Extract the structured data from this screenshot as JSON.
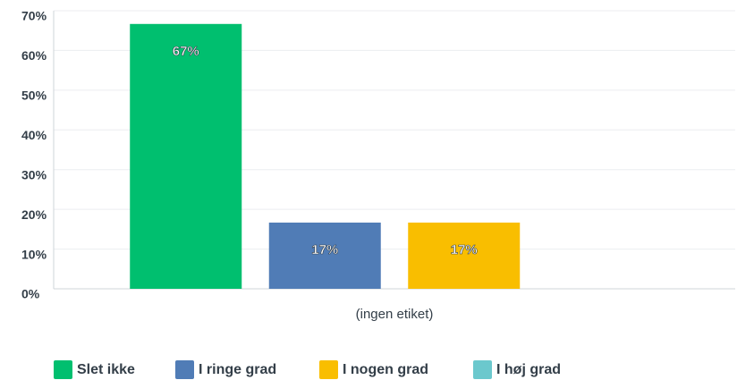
{
  "chart_data": {
    "type": "bar",
    "categories": [
      "(ingen etiket)"
    ],
    "series": [
      {
        "name": "Slet ikke",
        "color": "#00bf6f",
        "values": [
          66.67
        ],
        "value_labels": [
          "67%"
        ]
      },
      {
        "name": "I ringe grad",
        "color": "#507cb6",
        "values": [
          16.67
        ],
        "value_labels": [
          "17%"
        ]
      },
      {
        "name": "I nogen grad",
        "color": "#f9be00",
        "values": [
          16.67
        ],
        "value_labels": [
          "17%"
        ]
      },
      {
        "name": "I høj grad",
        "color": "#6bc8cd",
        "values": [
          0
        ]
      }
    ],
    "ylim": [
      0,
      70
    ],
    "yticks": [
      {
        "value": 0,
        "label": "0%"
      },
      {
        "value": 10,
        "label": "10%"
      },
      {
        "value": 20,
        "label": "20%"
      },
      {
        "value": 30,
        "label": "30%"
      },
      {
        "value": 40,
        "label": "40%"
      },
      {
        "value": 50,
        "label": "50%"
      },
      {
        "value": 60,
        "label": "60%"
      },
      {
        "value": 70,
        "label": "70%"
      }
    ],
    "grid": true
  }
}
